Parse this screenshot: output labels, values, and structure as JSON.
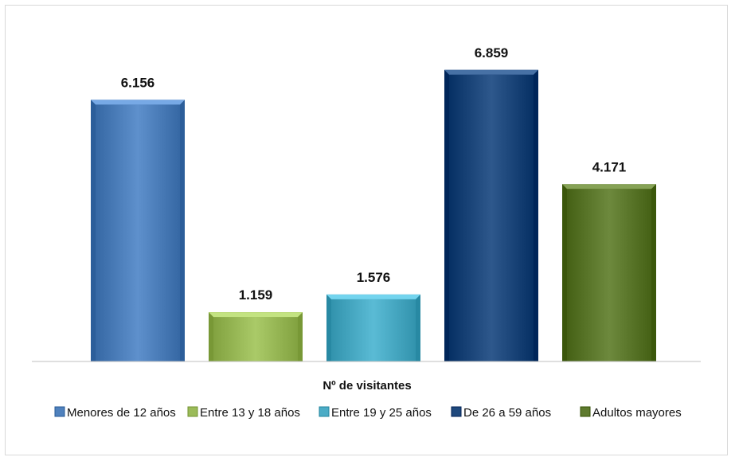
{
  "chart_data": {
    "type": "bar",
    "title": "",
    "xlabel": "Nº de visitantes",
    "ylabel": "",
    "ylim": [
      0,
      7500
    ],
    "grid": false,
    "legend_position": "bottom",
    "series": [
      {
        "name": "Menores de 12 años",
        "value": 6156,
        "label": "6.156",
        "color": "#4F81BD"
      },
      {
        "name": "Entre 13 y 18 años",
        "value": 1159,
        "label": "1.159",
        "color": "#9BBB59"
      },
      {
        "name": "Entre 19 y 25 años",
        "value": 1576,
        "label": "1.576",
        "color": "#4BACC6"
      },
      {
        "name": "De 26 a 59 años",
        "value": 6859,
        "label": "6.859",
        "color": "#1F497D"
      },
      {
        "name": "Adultos mayores",
        "value": 4171,
        "label": "4.171",
        "color": "#5E7A2E"
      }
    ]
  }
}
